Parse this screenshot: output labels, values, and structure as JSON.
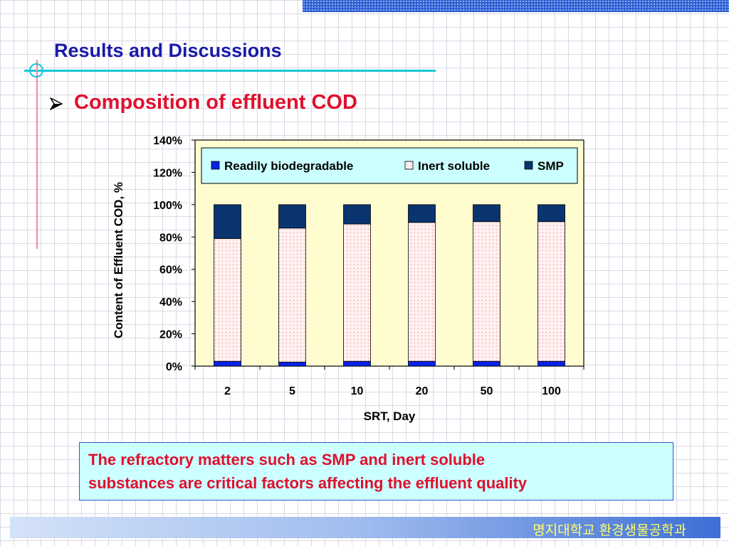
{
  "slide": {
    "title": "Results and Discussions",
    "subtitle": "Composition of effluent COD",
    "note_lines": [
      "The refractory matters such as SMP and inert soluble",
      "substances are critical factors affecting the effluent quality"
    ],
    "footer": "명지대학교 환경생물공학과"
  },
  "chart_data": {
    "type": "bar",
    "stacked": true,
    "categories": [
      "2",
      "5",
      "10",
      "20",
      "50",
      "100"
    ],
    "series": [
      {
        "name": "Readily biodegradable",
        "color": "#0a22e6",
        "values": [
          3,
          2.5,
          3,
          3,
          3,
          3
        ]
      },
      {
        "name": "Inert soluble",
        "color": "#fff0f0",
        "values": [
          76,
          83,
          85,
          86,
          86.5,
          86.5
        ]
      },
      {
        "name": "SMP",
        "color": "#0a3470",
        "values": [
          21,
          14.5,
          12,
          11,
          10.5,
          10.5
        ]
      }
    ],
    "xlabel": "SRT, Day",
    "ylabel": "Content of Effluent COD, %",
    "ylim": [
      0,
      140
    ],
    "yticks": [
      "0%",
      "20%",
      "40%",
      "60%",
      "80%",
      "100%",
      "120%",
      "140%"
    ],
    "ytick_values": [
      0,
      20,
      40,
      60,
      80,
      100,
      120,
      140
    ],
    "plot_background": "#fffdd0",
    "legend_background": "#ccffff",
    "legend_position": "top"
  }
}
